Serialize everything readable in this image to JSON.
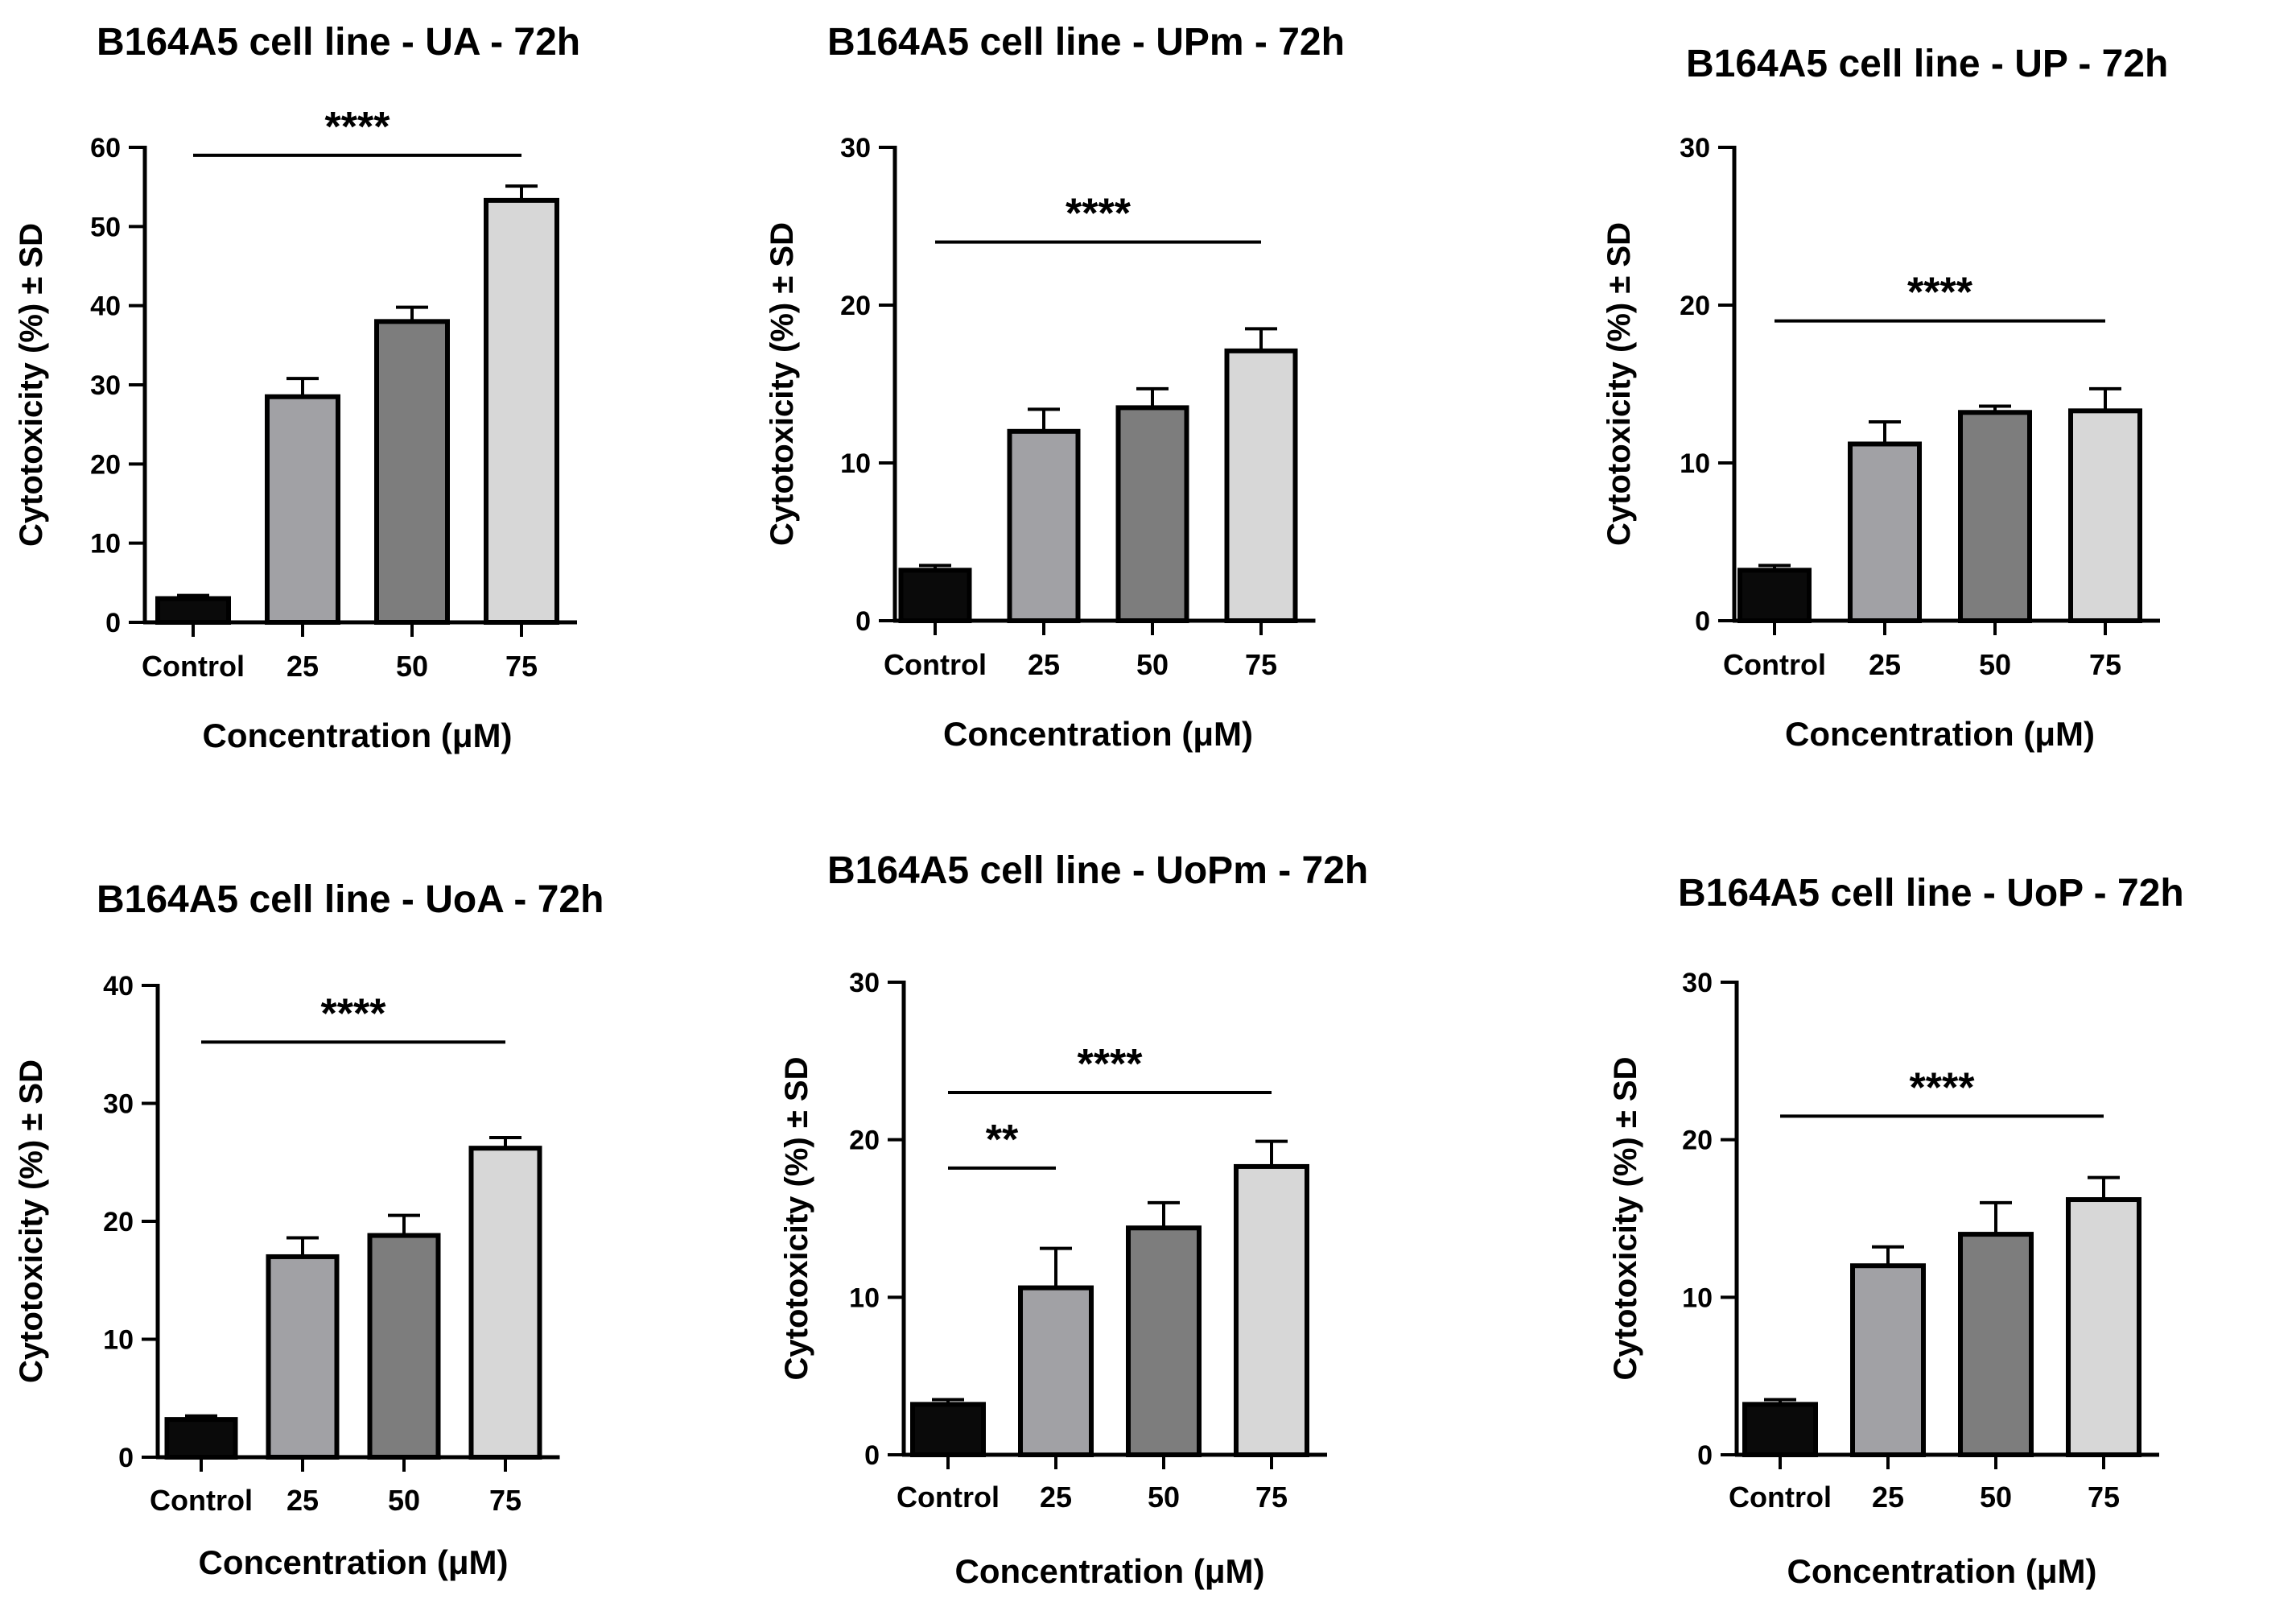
{
  "colors": {
    "background": "#ffffff",
    "axis": "#000000",
    "control": "#0a0a0a",
    "c25": "#a1a1a5",
    "c50": "#7d7d7d",
    "c75": "#d7d7d7"
  },
  "chart_data": [
    {
      "type": "bar",
      "title": "B164A5 cell line - UA - 72h",
      "xlabel": "Concentration (μM)",
      "ylabel": "Cytotoxicity (%) ± SD",
      "categories": [
        "Control",
        "25",
        "50",
        "75"
      ],
      "values": [
        3.0,
        28.5,
        38.0,
        53.3
      ],
      "errors": [
        0.4,
        2.3,
        1.8,
        1.8
      ],
      "ylim": [
        0,
        60
      ],
      "yticks": [
        "0",
        "10",
        "20",
        "30",
        "40",
        "50",
        "60"
      ],
      "significance": [
        {
          "from": 0,
          "to": 3,
          "y": 59.0,
          "label": "****"
        }
      ],
      "grid": false,
      "legend": "none"
    },
    {
      "type": "bar",
      "title": "B164A5 cell line - UPm - 72h",
      "xlabel": "Concentration (μM)",
      "ylabel": "Cytotoxicity (%) ± SD",
      "categories": [
        "Control",
        "25",
        "50",
        "75"
      ],
      "values": [
        3.2,
        12.0,
        13.5,
        17.1
      ],
      "errors": [
        0.3,
        1.4,
        1.2,
        1.4
      ],
      "ylim": [
        0,
        30
      ],
      "yticks": [
        "0",
        "10",
        "20",
        "30"
      ],
      "significance": [
        {
          "from": 0,
          "to": 3,
          "y": 24.0,
          "label": "****"
        }
      ],
      "grid": false,
      "legend": "none"
    },
    {
      "type": "bar",
      "title": "B164A5 cell line - UP - 72h",
      "xlabel": "Concentration (μM)",
      "ylabel": "Cytotoxicity (%) ± SD",
      "categories": [
        "Control",
        "25",
        "50",
        "75"
      ],
      "values": [
        3.2,
        11.2,
        13.2,
        13.3
      ],
      "errors": [
        0.3,
        1.4,
        0.4,
        1.4
      ],
      "ylim": [
        0,
        30
      ],
      "yticks": [
        "0",
        "10",
        "20",
        "30"
      ],
      "significance": [
        {
          "from": 0,
          "to": 3,
          "y": 19.0,
          "label": "****"
        }
      ],
      "grid": false,
      "legend": "none"
    },
    {
      "type": "bar",
      "title": "B164A5 cell line - UoA - 72h",
      "xlabel": "Concentration (μM)",
      "ylabel": "Cytotoxicity (%) ± SD",
      "categories": [
        "Control",
        "25",
        "50",
        "75"
      ],
      "values": [
        3.2,
        17.0,
        18.8,
        26.2
      ],
      "errors": [
        0.3,
        1.6,
        1.7,
        0.9
      ],
      "ylim": [
        0,
        40
      ],
      "yticks": [
        "0",
        "10",
        "20",
        "30",
        "40"
      ],
      "significance": [
        {
          "from": 0,
          "to": 3,
          "y": 35.2,
          "label": "****"
        }
      ],
      "grid": false,
      "legend": "none"
    },
    {
      "type": "bar",
      "title": "B164A5 cell line - UoPm - 72h",
      "xlabel": "Concentration (μM)",
      "ylabel": "Cytotoxicity (%) ± SD",
      "categories": [
        "Control",
        "25",
        "50",
        "75"
      ],
      "values": [
        3.2,
        10.6,
        14.4,
        18.3
      ],
      "errors": [
        0.3,
        2.5,
        1.6,
        1.6
      ],
      "ylim": [
        0,
        30
      ],
      "yticks": [
        "0",
        "10",
        "20",
        "30"
      ],
      "significance": [
        {
          "from": 0,
          "to": 3,
          "y": 23.0,
          "label": "****"
        },
        {
          "from": 0,
          "to": 1,
          "y": 18.2,
          "label": "**"
        }
      ],
      "grid": false,
      "legend": "none"
    },
    {
      "type": "bar",
      "title": "B164A5 cell line - UoP - 72h",
      "xlabel": "Concentration (μM)",
      "ylabel": "Cytotoxicity (%) ± SD",
      "categories": [
        "Control",
        "25",
        "50",
        "75"
      ],
      "values": [
        3.2,
        12.0,
        14.0,
        16.2
      ],
      "errors": [
        0.3,
        1.2,
        2.0,
        1.4
      ],
      "ylim": [
        0,
        30
      ],
      "yticks": [
        "0",
        "10",
        "20",
        "30"
      ],
      "significance": [
        {
          "from": 0,
          "to": 3,
          "y": 21.5,
          "label": "****"
        }
      ],
      "grid": false,
      "legend": "none"
    }
  ]
}
